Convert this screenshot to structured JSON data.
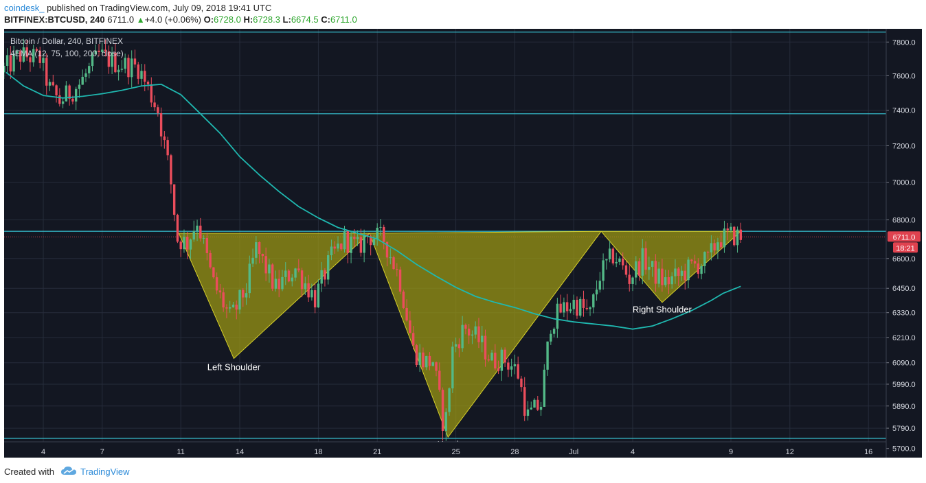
{
  "header": {
    "author": "coindesk_",
    "published": " published on TradingView.com, July 09, 2018 19:41 UTC",
    "symbol": "BITFINEX:BTCUSD, 240",
    "last": "6711.0",
    "change": "+4.0 (+0.06%)",
    "o_label": "O:",
    "o": "6728.0",
    "h_label": "H:",
    "h": "6728.3",
    "l_label": "L:",
    "l": "6674.5",
    "c_label": "C:",
    "c": "6711.0"
  },
  "footer": {
    "created_with": "Created with",
    "brand": "TradingView"
  },
  "colors": {
    "background": "#131722",
    "grid": "#262c3b",
    "up": "#53b987",
    "down": "#eb4d5c",
    "ema": "#1fb8b0",
    "hline": "#38c6d6",
    "pattern_fill": "#9e9a14",
    "price_badge": "#e0424f"
  },
  "chart_data": {
    "type": "candlestick",
    "title": "Bitcoin / Dollar, 240, BITFINEX",
    "indicator": "4EMA (12, 75, 100, 200, close)",
    "y_scale": "log",
    "ylim": [
      5660,
      7880
    ],
    "x_ticks": [
      {
        "label": "4",
        "day": 4
      },
      {
        "label": "7",
        "day": 7
      },
      {
        "label": "11",
        "day": 11
      },
      {
        "label": "14",
        "day": 14
      },
      {
        "label": "18",
        "day": 18
      },
      {
        "label": "21",
        "day": 21
      },
      {
        "label": "25",
        "day": 25
      },
      {
        "label": "28",
        "day": 28
      },
      {
        "label": "Jul",
        "day": 31
      },
      {
        "label": "4",
        "day": 34
      },
      {
        "label": "9",
        "day": 39
      },
      {
        "label": "12",
        "day": 42
      },
      {
        "label": "16",
        "day": 46
      }
    ],
    "y_ticks": [
      "7800.0",
      "7600.0",
      "7400.0",
      "7200.0",
      "7000.0",
      "6800.0",
      "6600.0",
      "6450.0",
      "6330.0",
      "6210.0",
      "6090.0",
      "5990.0",
      "5890.0",
      "5790.0",
      "5700.0"
    ],
    "horizontal_lines": [
      7860,
      7380,
      6740,
      5745
    ],
    "last_price": {
      "value": 6711.0,
      "label": "6711.0",
      "countdown": "18:21"
    },
    "ema": [
      [
        2.1,
        7620
      ],
      [
        3.0,
        7540
      ],
      [
        4.0,
        7485
      ],
      [
        5.0,
        7470
      ],
      [
        6.0,
        7480
      ],
      [
        7.0,
        7495
      ],
      [
        8.0,
        7515
      ],
      [
        9.0,
        7540
      ],
      [
        10.0,
        7550
      ],
      [
        11.0,
        7490
      ],
      [
        12.0,
        7380
      ],
      [
        13.0,
        7270
      ],
      [
        14.0,
        7140
      ],
      [
        15.0,
        7040
      ],
      [
        16.0,
        6950
      ],
      [
        17.0,
        6870
      ],
      [
        18.0,
        6810
      ],
      [
        19.0,
        6760
      ],
      [
        20.0,
        6730
      ],
      [
        21.0,
        6700
      ],
      [
        22.0,
        6640
      ],
      [
        23.0,
        6570
      ],
      [
        24.0,
        6510
      ],
      [
        25.0,
        6455
      ],
      [
        26.0,
        6410
      ],
      [
        27.0,
        6380
      ],
      [
        28.0,
        6355
      ],
      [
        29.0,
        6325
      ],
      [
        30.0,
        6300
      ],
      [
        31.0,
        6285
      ],
      [
        32.0,
        6275
      ],
      [
        33.0,
        6265
      ],
      [
        34.0,
        6250
      ],
      [
        35.0,
        6265
      ],
      [
        36.0,
        6300
      ],
      [
        37.0,
        6340
      ],
      [
        38.0,
        6390
      ],
      [
        38.6,
        6425
      ],
      [
        39.5,
        6460
      ]
    ],
    "pattern": [
      {
        "name": "Left Shoulder",
        "label": "Left Shoulder",
        "points": [
          [
            10.9,
            6730
          ],
          [
            20.6,
            6730
          ],
          [
            13.7,
            6110
          ]
        ],
        "label_pos": [
          13.7,
          6055
        ]
      },
      {
        "name": "Head",
        "label": "Head",
        "points": [
          [
            20.6,
            6730
          ],
          [
            32.4,
            6740
          ],
          [
            24.6,
            5750
          ]
        ],
        "label_pos": [
          24.6,
          5705
        ]
      },
      {
        "name": "Right Shoulder",
        "label": "Right Shoulder",
        "points": [
          [
            32.4,
            6740
          ],
          [
            39.5,
            6740
          ],
          [
            35.5,
            6380
          ]
        ],
        "label_pos": [
          35.5,
          6330
        ]
      }
    ],
    "anchors": [
      [
        2.0,
        7620
      ],
      [
        3.0,
        7720
      ],
      [
        4.0,
        7700
      ],
      [
        4.5,
        7520
      ],
      [
        5.0,
        7450
      ],
      [
        6.0,
        7550
      ],
      [
        7.0,
        7720
      ],
      [
        8.0,
        7670
      ],
      [
        9.0,
        7650
      ],
      [
        10.0,
        7400
      ],
      [
        10.6,
        7050
      ],
      [
        11.0,
        6700
      ],
      [
        11.5,
        6680
      ],
      [
        12.0,
        6800
      ],
      [
        12.8,
        6480
      ],
      [
        13.7,
        6300
      ],
      [
        14.5,
        6450
      ],
      [
        15.0,
        6650
      ],
      [
        16.0,
        6450
      ],
      [
        17.0,
        6550
      ],
      [
        18.0,
        6400
      ],
      [
        18.8,
        6600
      ],
      [
        19.5,
        6700
      ],
      [
        20.2,
        6650
      ],
      [
        20.6,
        6720
      ],
      [
        21.5,
        6700
      ],
      [
        22.3,
        6500
      ],
      [
        23.0,
        6150
      ],
      [
        23.6,
        6090
      ],
      [
        24.0,
        6100
      ],
      [
        24.6,
        5770
      ],
      [
        25.0,
        6150
      ],
      [
        25.6,
        6260
      ],
      [
        26.3,
        6200
      ],
      [
        27.0,
        6100
      ],
      [
        27.6,
        6110
      ],
      [
        28.3,
        6050
      ],
      [
        28.8,
        5840
      ],
      [
        29.5,
        5900
      ],
      [
        30.0,
        6280
      ],
      [
        30.5,
        6340
      ],
      [
        31.2,
        6380
      ],
      [
        32.0,
        6320
      ],
      [
        32.5,
        6520
      ],
      [
        33.2,
        6620
      ],
      [
        34.0,
        6500
      ],
      [
        34.7,
        6600
      ],
      [
        35.3,
        6520
      ],
      [
        35.8,
        6480
      ],
      [
        36.5,
        6510
      ],
      [
        37.2,
        6560
      ],
      [
        38.0,
        6590
      ],
      [
        38.5,
        6700
      ],
      [
        39.3,
        6720
      ],
      [
        39.6,
        6711
      ]
    ]
  }
}
